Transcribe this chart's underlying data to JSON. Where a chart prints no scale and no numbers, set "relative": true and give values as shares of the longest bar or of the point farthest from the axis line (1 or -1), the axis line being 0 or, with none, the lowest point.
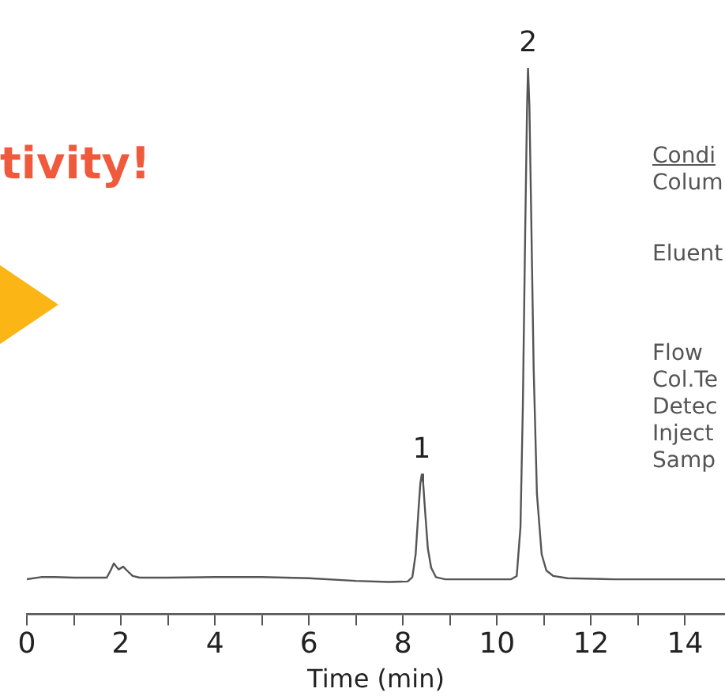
{
  "chart_data": {
    "type": "line",
    "relative": true,
    "xlabel": "Time (min)",
    "xlim": [
      0,
      14.85
    ],
    "xticks": [
      0,
      {
        "value": 1,
        "label": null
      },
      2,
      {
        "value": 3,
        "label": null
      },
      4,
      {
        "value": 5,
        "label": null
      },
      6,
      {
        "value": 7,
        "label": null
      },
      8,
      {
        "value": 9,
        "label": null
      },
      10,
      {
        "value": 11,
        "label": null
      },
      12,
      {
        "value": 13,
        "label": null
      },
      14
    ],
    "grid": false,
    "legend": false,
    "marker": "none",
    "line_style": "solid",
    "series": [
      {
        "color": "#555555",
        "x": [
          0,
          0.3,
          0.6,
          1.0,
          1.5,
          1.7,
          1.78,
          1.85,
          1.95,
          2.05,
          2.13,
          2.25,
          2.4,
          3.0,
          4.0,
          5.0,
          6.0,
          7.0,
          7.7,
          8.1,
          8.2,
          8.27,
          8.33,
          8.37,
          8.4,
          8.43,
          8.47,
          8.53,
          8.6,
          8.7,
          8.9,
          9.5,
          10.3,
          10.42,
          10.5,
          10.55,
          10.6,
          10.64,
          10.66,
          10.69,
          10.73,
          10.78,
          10.85,
          10.95,
          11.05,
          11.2,
          11.5,
          12.5,
          13.5,
          14.85
        ],
        "values": [
          0.064,
          0.068,
          0.068,
          0.067,
          0.067,
          0.067,
          0.08,
          0.093,
          0.082,
          0.087,
          0.08,
          0.07,
          0.067,
          0.067,
          0.068,
          0.068,
          0.066,
          0.061,
          0.059,
          0.06,
          0.068,
          0.11,
          0.19,
          0.24,
          0.256,
          0.24,
          0.19,
          0.12,
          0.085,
          0.068,
          0.064,
          0.064,
          0.064,
          0.07,
          0.16,
          0.38,
          0.7,
          0.93,
          1,
          0.93,
          0.72,
          0.45,
          0.22,
          0.11,
          0.08,
          0.07,
          0.066,
          0.064,
          0.064,
          0.064
        ]
      }
    ],
    "annotations": [
      {
        "text": "1",
        "x": 8.4,
        "y": 0.256
      },
      {
        "text": "2",
        "x": 10.66,
        "y": 1
      },
      "tivity!",
      "Condi",
      "Colum",
      "Eluent",
      "Flow",
      "Col.Te",
      "Detec",
      "Inject",
      "Samp"
    ]
  }
}
